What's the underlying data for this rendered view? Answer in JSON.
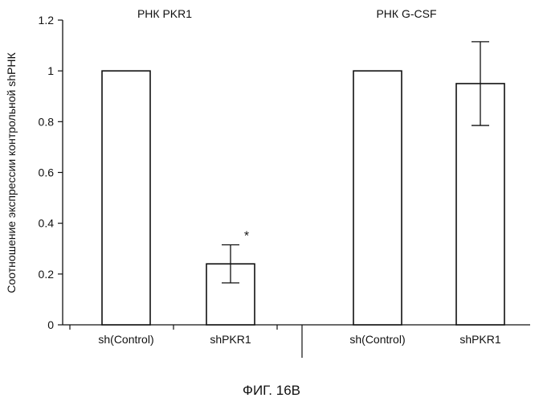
{
  "figure_caption": "ФИГ. 16В",
  "chart_data": {
    "type": "bar",
    "ylabel": "Соотношение экспрессии контрольной shРНК",
    "ylim": [
      0,
      1.2
    ],
    "yticks": [
      0,
      0.2,
      0.4,
      0.6,
      0.8,
      1,
      1.2
    ],
    "ytick_labels": [
      "0",
      "0.2",
      "0.4",
      "0.6",
      "0.8",
      "1",
      "1.2"
    ],
    "grid": false,
    "groups": [
      {
        "title": "РНК PKR1",
        "categories": [
          "sh(Control)",
          "shPKR1"
        ],
        "values": [
          1.0,
          0.24
        ],
        "errors": [
          0,
          0.075
        ],
        "annotations": [
          "",
          "*"
        ]
      },
      {
        "title": "РНК G-CSF",
        "categories": [
          "sh(Control)",
          "shPKR1"
        ],
        "values": [
          1.0,
          0.95
        ],
        "errors": [
          0,
          0.165
        ],
        "annotations": [
          "",
          ""
        ]
      }
    ],
    "bar_fill": "#ffffff",
    "bar_stroke": "#111111"
  }
}
